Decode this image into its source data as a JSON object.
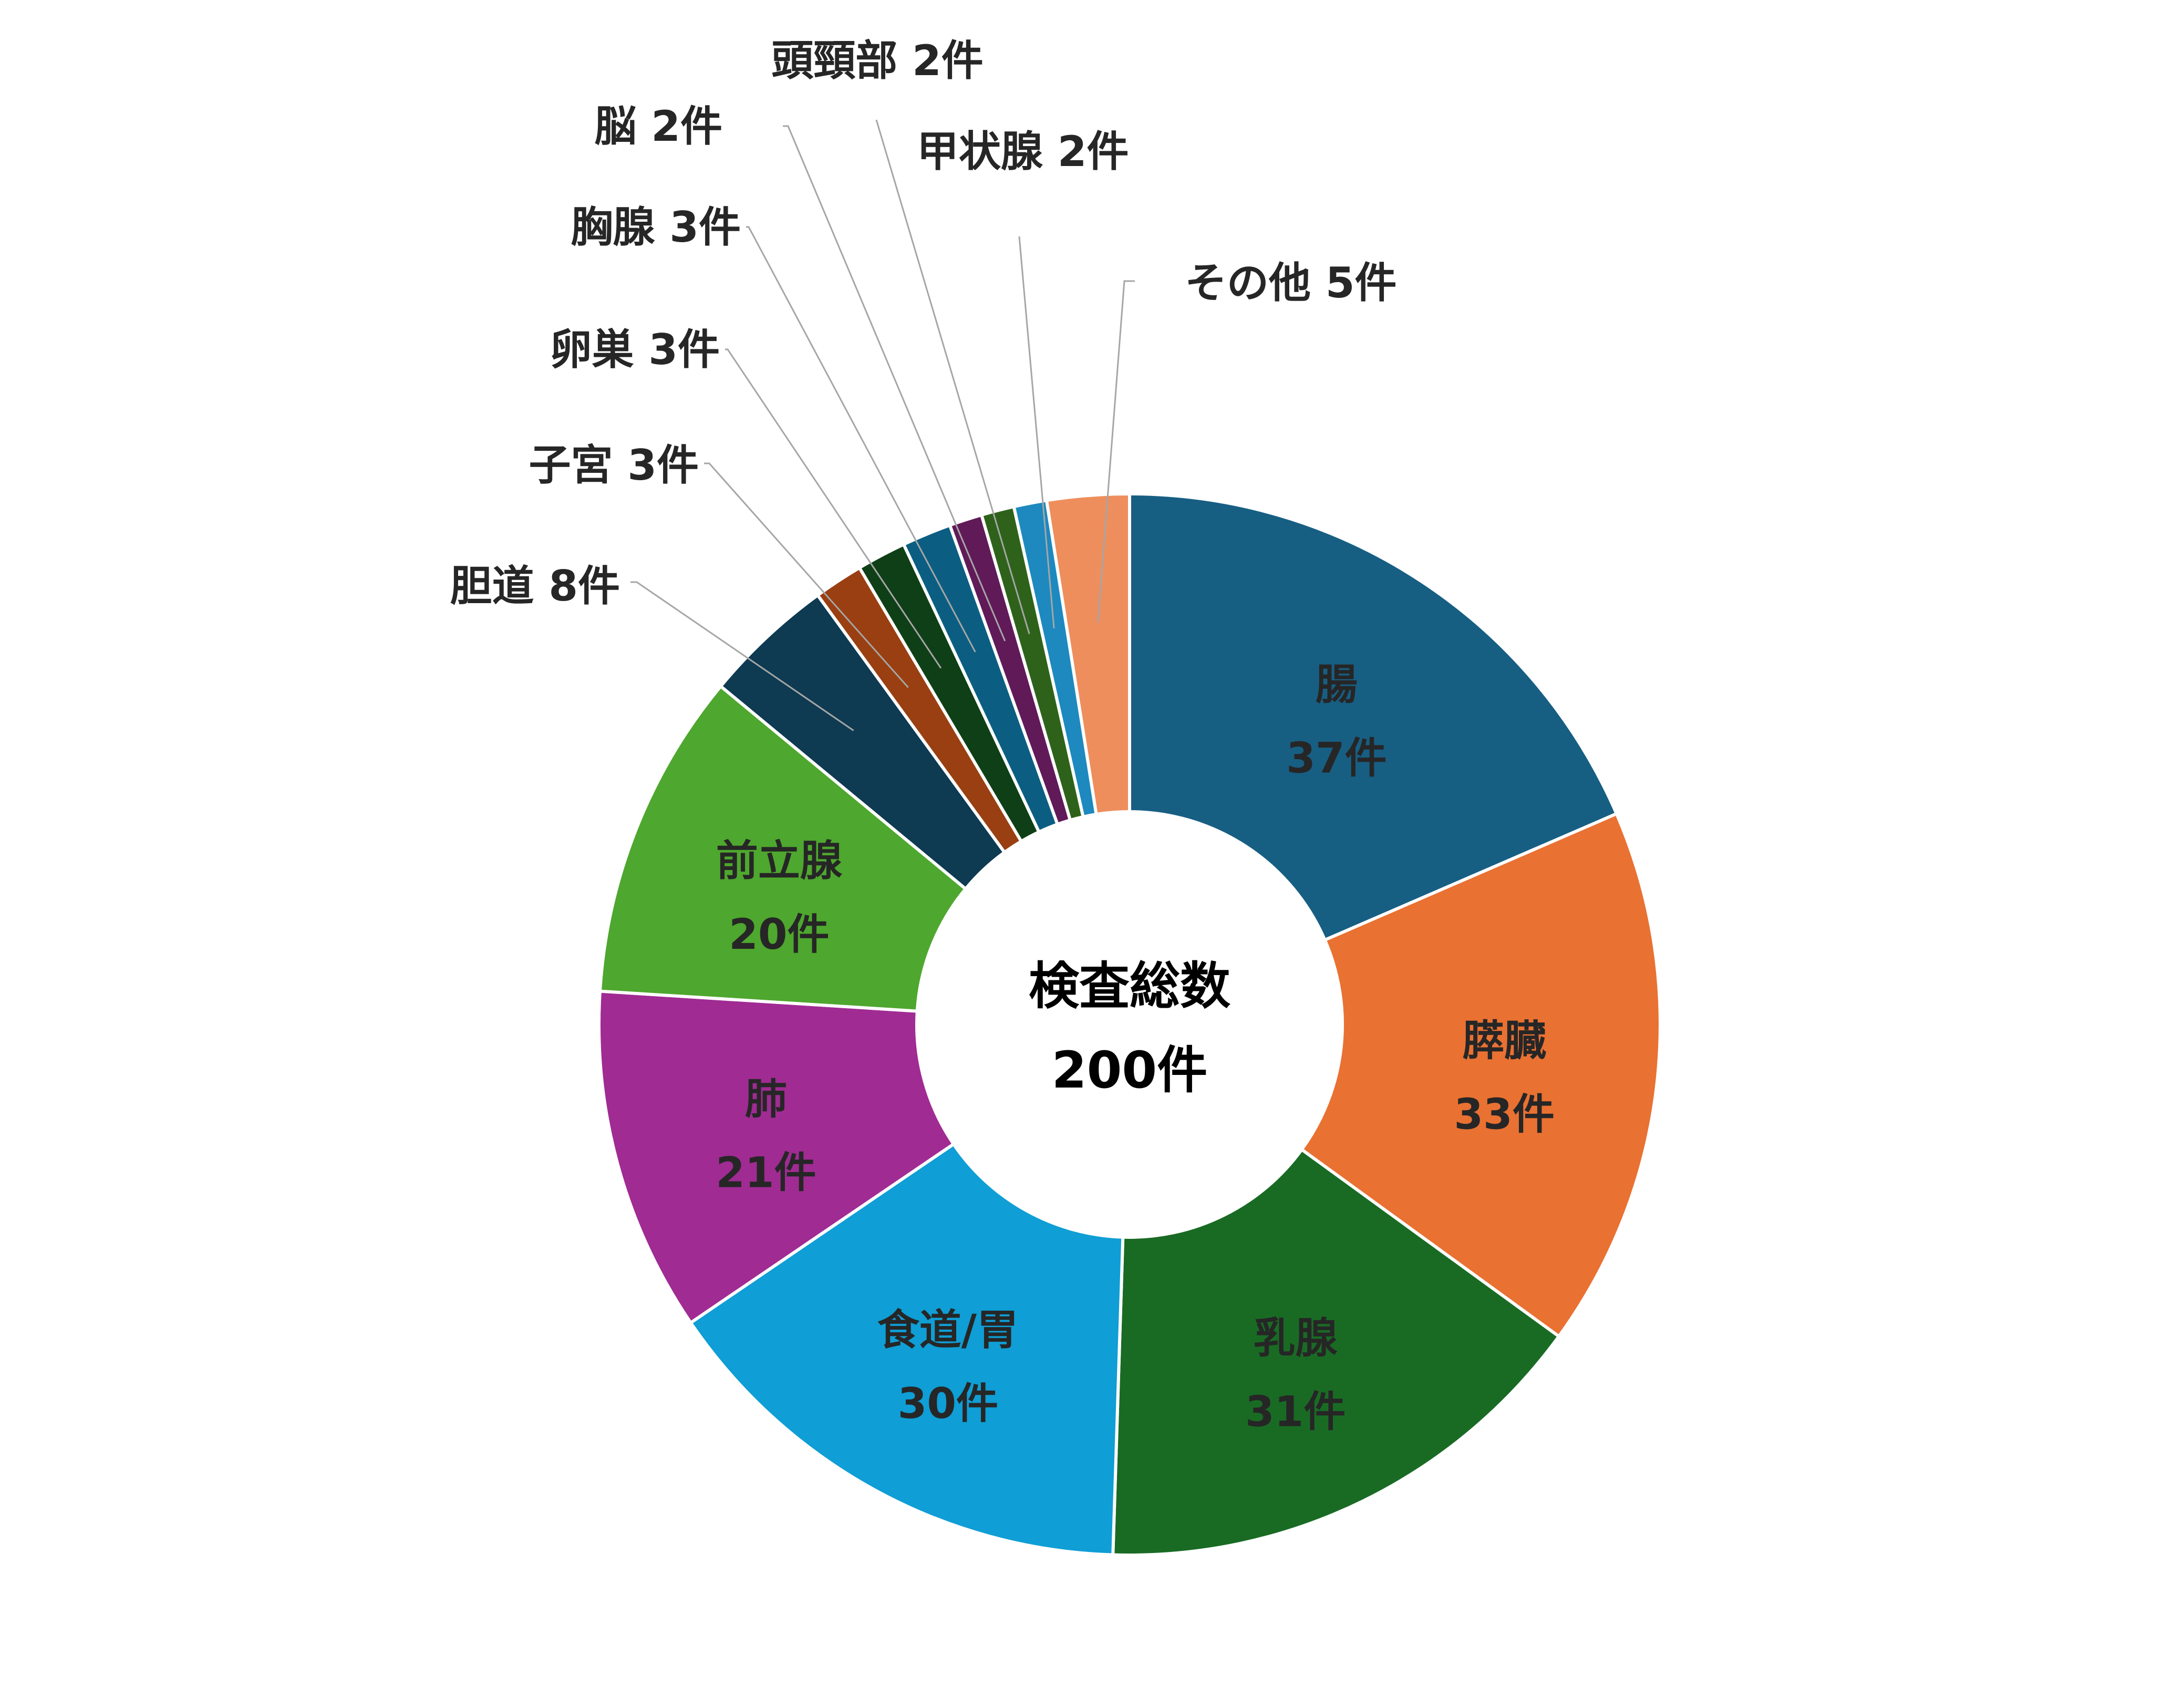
{
  "chart_data": {
    "type": "pie",
    "center_label": {
      "line1": "検査総数",
      "line2": "200件"
    },
    "total": 200,
    "unit": "件",
    "slices": [
      {
        "label": "腸",
        "value": 37,
        "color": "#175E83",
        "value_text": "37件",
        "inside": true
      },
      {
        "label": "膵臓",
        "value": 33,
        "color": "#E97132",
        "value_text": "33件",
        "inside": true
      },
      {
        "label": "乳腺",
        "value": 31,
        "color": "#196B24",
        "value_text": "31件",
        "inside": true
      },
      {
        "label": "食道/胃",
        "value": 30,
        "color": "#0F9ED5",
        "value_text": "30件",
        "inside": true
      },
      {
        "label": "肺",
        "value": 21,
        "color": "#A02B93",
        "value_text": "21件",
        "inside": true
      },
      {
        "label": "前立腺",
        "value": 20,
        "color": "#4EA72E",
        "value_text": "20件",
        "inside": true
      },
      {
        "label": "胆道",
        "value": 8,
        "color": "#0E3A52",
        "value_text": "8件",
        "inside": false
      },
      {
        "label": "子宮",
        "value": 3,
        "color": "#9A3F11",
        "value_text": "3件",
        "inside": false
      },
      {
        "label": "卵巣",
        "value": 3,
        "color": "#0F3F17",
        "value_text": "3件",
        "inside": false
      },
      {
        "label": "胸腺",
        "value": 3,
        "color": "#0B5E81",
        "value_text": "3件",
        "inside": false
      },
      {
        "label": "脳",
        "value": 2,
        "color": "#601A58",
        "value_text": "2件",
        "inside": false
      },
      {
        "label": "頭頸部",
        "value": 2,
        "color": "#2E621B",
        "value_text": "2件",
        "inside": false
      },
      {
        "label": "甲状腺",
        "value": 2,
        "color": "#1D89BF",
        "value_text": "2件",
        "inside": false
      },
      {
        "label": "その他",
        "value": 5,
        "color": "#EE8E5C",
        "value_text": "5件",
        "inside": false
      }
    ]
  }
}
